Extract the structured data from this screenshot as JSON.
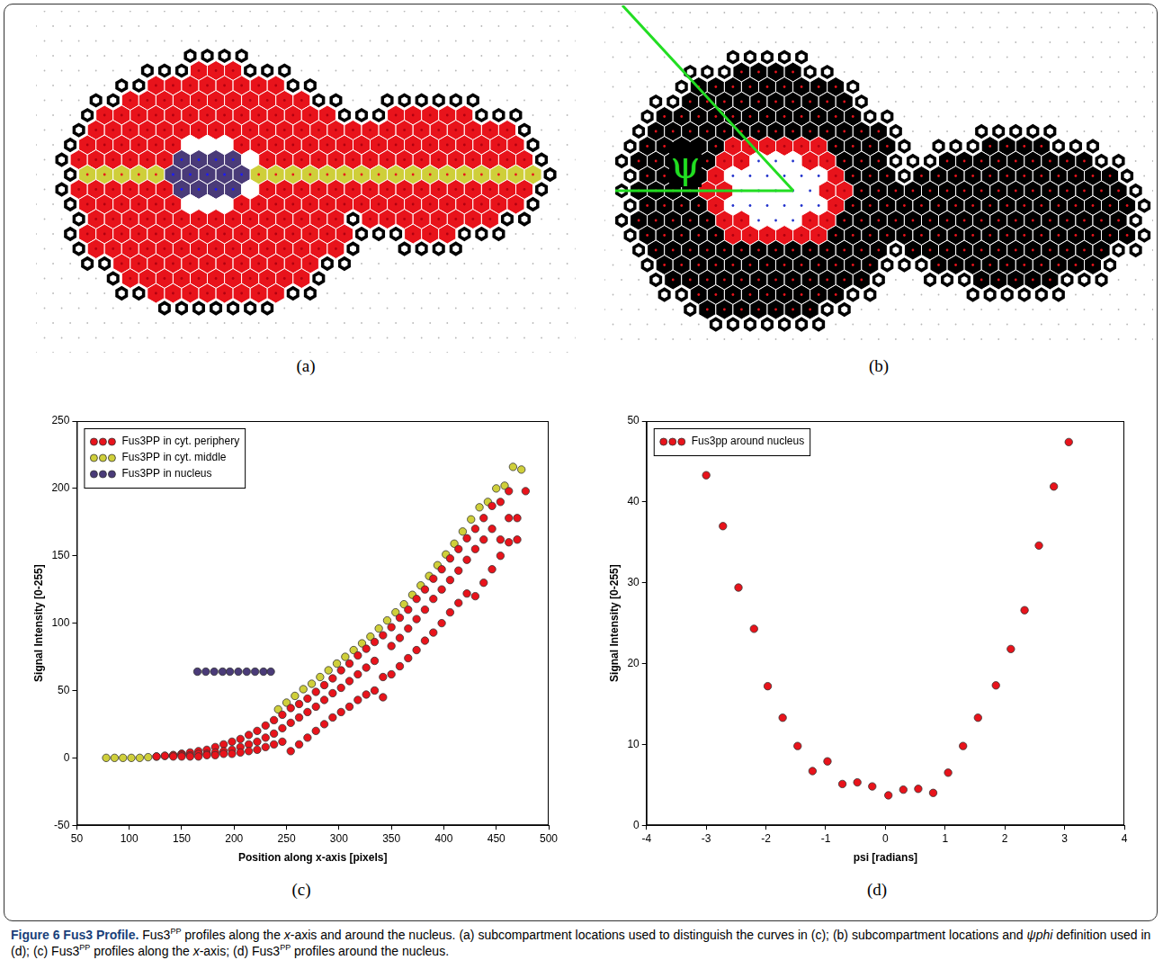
{
  "figure": {
    "caption": [
      {
        "text": "Figure 6 Fus3 Profile.",
        "style": "bold"
      },
      {
        "text": " Fus3"
      },
      {
        "text": "PP",
        "style": "sup"
      },
      {
        "text": " profiles along the "
      },
      {
        "text": "x",
        "style": "italic"
      },
      {
        "text": "-axis and around the nucleus. (a) subcompartment locations used to distinguish the curves in (c); (b) subcompartment locations and "
      },
      {
        "text": "ψphi",
        "style": "italic"
      },
      {
        "text": " definition used in (d); (c) Fus3"
      },
      {
        "text": "PP",
        "style": "sup"
      },
      {
        "text": " profiles along the "
      },
      {
        "text": "x",
        "style": "italic"
      },
      {
        "text": "-axis; (d) Fus3"
      },
      {
        "text": "PP",
        "style": "sup"
      },
      {
        "text": " profiles around the nucleus."
      }
    ]
  },
  "diagrams": [
    {
      "label": "(a)"
    },
    {
      "label": "(b)",
      "angle_label": "ψ"
    }
  ],
  "chart_data": [
    {
      "type": "scatter",
      "label": "(c)",
      "x_label": "Position along x-axis [pixels]",
      "y_label": "Signal Intensity [0-255]",
      "xlim": [
        50,
        500
      ],
      "xticks": [
        50,
        100,
        150,
        200,
        250,
        300,
        350,
        400,
        450,
        500
      ],
      "ylim": [
        -50,
        250
      ],
      "yticks": [
        -50,
        0,
        50,
        100,
        150,
        200,
        250
      ],
      "grid": false,
      "legend": "upper left",
      "series": [
        {
          "name": "Fus3PP in cyt. periphery",
          "color": "#e8131b",
          "marker": "circle",
          "x": [
            126,
            134,
            142,
            142,
            150,
            150,
            150,
            158,
            158,
            158,
            166,
            166,
            166,
            174,
            174,
            174,
            182,
            182,
            182,
            190,
            190,
            190,
            198,
            198,
            198,
            206,
            206,
            206,
            214,
            214,
            214,
            222,
            222,
            222,
            230,
            230,
            230,
            238,
            238,
            238,
            246,
            246,
            246,
            254,
            254,
            254,
            262,
            262,
            262,
            270,
            270,
            270,
            278,
            278,
            278,
            286,
            286,
            286,
            294,
            294,
            294,
            302,
            302,
            302,
            310,
            310,
            310,
            318,
            318,
            318,
            326,
            326,
            326,
            334,
            334,
            334,
            342,
            342,
            342,
            350,
            350,
            350,
            358,
            358,
            358,
            366,
            366,
            366,
            374,
            374,
            374,
            382,
            382,
            382,
            390,
            390,
            390,
            398,
            398,
            398,
            406,
            406,
            406,
            414,
            414,
            414,
            422,
            422,
            422,
            430,
            430,
            430,
            438,
            438,
            438,
            446,
            446,
            446,
            454,
            454,
            454,
            462,
            462,
            462,
            470,
            470,
            478
          ],
          "values": [
            1,
            1.5,
            2,
            1,
            3,
            2,
            1,
            4,
            2,
            1,
            5,
            3,
            1,
            6,
            3,
            2,
            8,
            4,
            2,
            10,
            5,
            3,
            12,
            6,
            3,
            14,
            8,
            4,
            17,
            10,
            5,
            20,
            12,
            6,
            24,
            15,
            8,
            28,
            18,
            10,
            32,
            22,
            12,
            37,
            26,
            5,
            40,
            30,
            10,
            44,
            34,
            15,
            49,
            38,
            20,
            54,
            43,
            25,
            59,
            48,
            30,
            65,
            52,
            34,
            70,
            57,
            38,
            76,
            62,
            43,
            81,
            67,
            47,
            86,
            72,
            50,
            91,
            60,
            45,
            97,
            83,
            62,
            104,
            89,
            68,
            110,
            96,
            74,
            118,
            103,
            80,
            125,
            110,
            87,
            133,
            118,
            93,
            140,
            125,
            100,
            148,
            132,
            108,
            155,
            139,
            115,
            163,
            147,
            122,
            170,
            155,
            120,
            178,
            162,
            130,
            187,
            170,
            140,
            190,
            162,
            150,
            198,
            178,
            160,
            178,
            162,
            198
          ]
        },
        {
          "name": "Fus3PP in cyt. middle",
          "color": "#cfcf3a",
          "marker": "circle",
          "x": [
            78,
            86,
            94,
            102,
            110,
            118,
            126,
            134,
            142,
            150,
            242,
            250,
            258,
            266,
            274,
            282,
            290,
            298,
            306,
            314,
            322,
            330,
            338,
            346,
            354,
            362,
            370,
            378,
            386,
            394,
            402,
            410,
            418,
            426,
            434,
            442,
            450,
            458,
            466,
            474
          ],
          "values": [
            0,
            0,
            0,
            0,
            0,
            0.5,
            1,
            1.5,
            2,
            3,
            36,
            41,
            46,
            51,
            55,
            60,
            65,
            70,
            75,
            80,
            85,
            90,
            96,
            102,
            108,
            114,
            121,
            128,
            135,
            143,
            151,
            159,
            168,
            177,
            186,
            190,
            200,
            202,
            216,
            214
          ]
        },
        {
          "name": "Fus3PP in nucleus",
          "color": "#4a3b78",
          "marker": "circle",
          "x": [
            165,
            173,
            181,
            189,
            196,
            204,
            212,
            220,
            228,
            235
          ],
          "values": [
            64,
            64,
            64,
            64,
            64,
            64,
            64,
            64,
            64,
            64
          ]
        }
      ]
    },
    {
      "type": "scatter",
      "label": "(d)",
      "x_label": "psi [radians]",
      "y_label": "Signal Intensity [0-255]",
      "xlim": [
        -4,
        4
      ],
      "xticks": [
        -4,
        -3,
        -2,
        -1,
        0,
        1,
        2,
        3,
        4
      ],
      "ylim": [
        0,
        50
      ],
      "yticks": [
        0,
        10,
        20,
        30,
        40,
        50
      ],
      "grid": false,
      "legend": "upper left",
      "series": [
        {
          "name": "Fus3pp around nucleus",
          "color": "#e8131b",
          "marker": "circle",
          "x": [
            -3.0,
            -2.72,
            -2.46,
            -2.2,
            -1.97,
            -1.72,
            -1.47,
            -1.22,
            -0.97,
            -0.72,
            -0.47,
            -0.22,
            0.05,
            0.3,
            0.55,
            0.8,
            1.05,
            1.3,
            1.55,
            1.85,
            2.1,
            2.33,
            2.57,
            2.82,
            3.07
          ],
          "values": [
            43.3,
            37,
            29.4,
            24.3,
            17.2,
            13.3,
            9.8,
            6.7,
            7.9,
            5.1,
            5.3,
            4.8,
            3.7,
            4.4,
            4.5,
            4.0,
            6.5,
            9.8,
            13.3,
            17.3,
            21.8,
            26.6,
            34.6,
            41.9,
            47.4
          ]
        }
      ]
    }
  ]
}
